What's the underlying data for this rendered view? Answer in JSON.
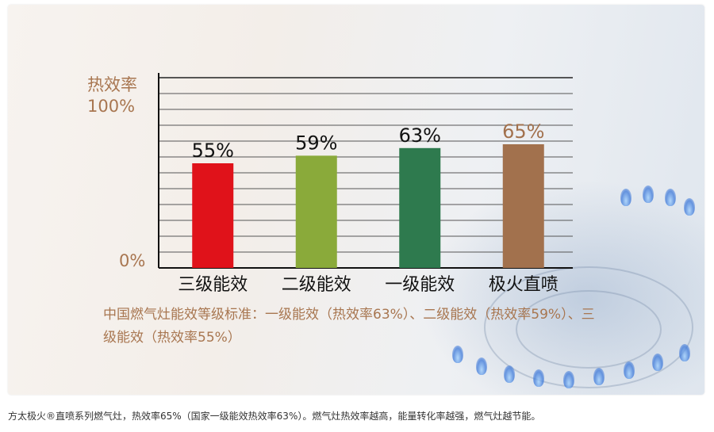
{
  "chart_data": {
    "type": "bar",
    "ylabel": "热效率",
    "ytick_top": "100%",
    "ytick_bottom": "0%",
    "ylim": [
      0,
      100
    ],
    "categories": [
      "三级能效",
      "二级能效",
      "一级能效",
      "极火直喷"
    ],
    "values": [
      55,
      59,
      63,
      65
    ],
    "value_labels": [
      "55%",
      "59%",
      "63%",
      "65%"
    ],
    "colors": [
      "#e0121a",
      "#8aaa3a",
      "#2e7a4e",
      "#a2714d"
    ],
    "label_colors": [
      "#111111",
      "#111111",
      "#111111",
      "#a2714d"
    ],
    "grid": true
  },
  "note": "中国燃气灶能效等级标准：一级能效（热效率63%）、二级能效（热效率59%）、三级能效（热效率55%）",
  "caption": "方太极火®直喷系列燃气灶，热效率65%（国家一级能效热效率63%）。燃气灶热效率越高，能量转化率越强，燃气灶越节能。"
}
